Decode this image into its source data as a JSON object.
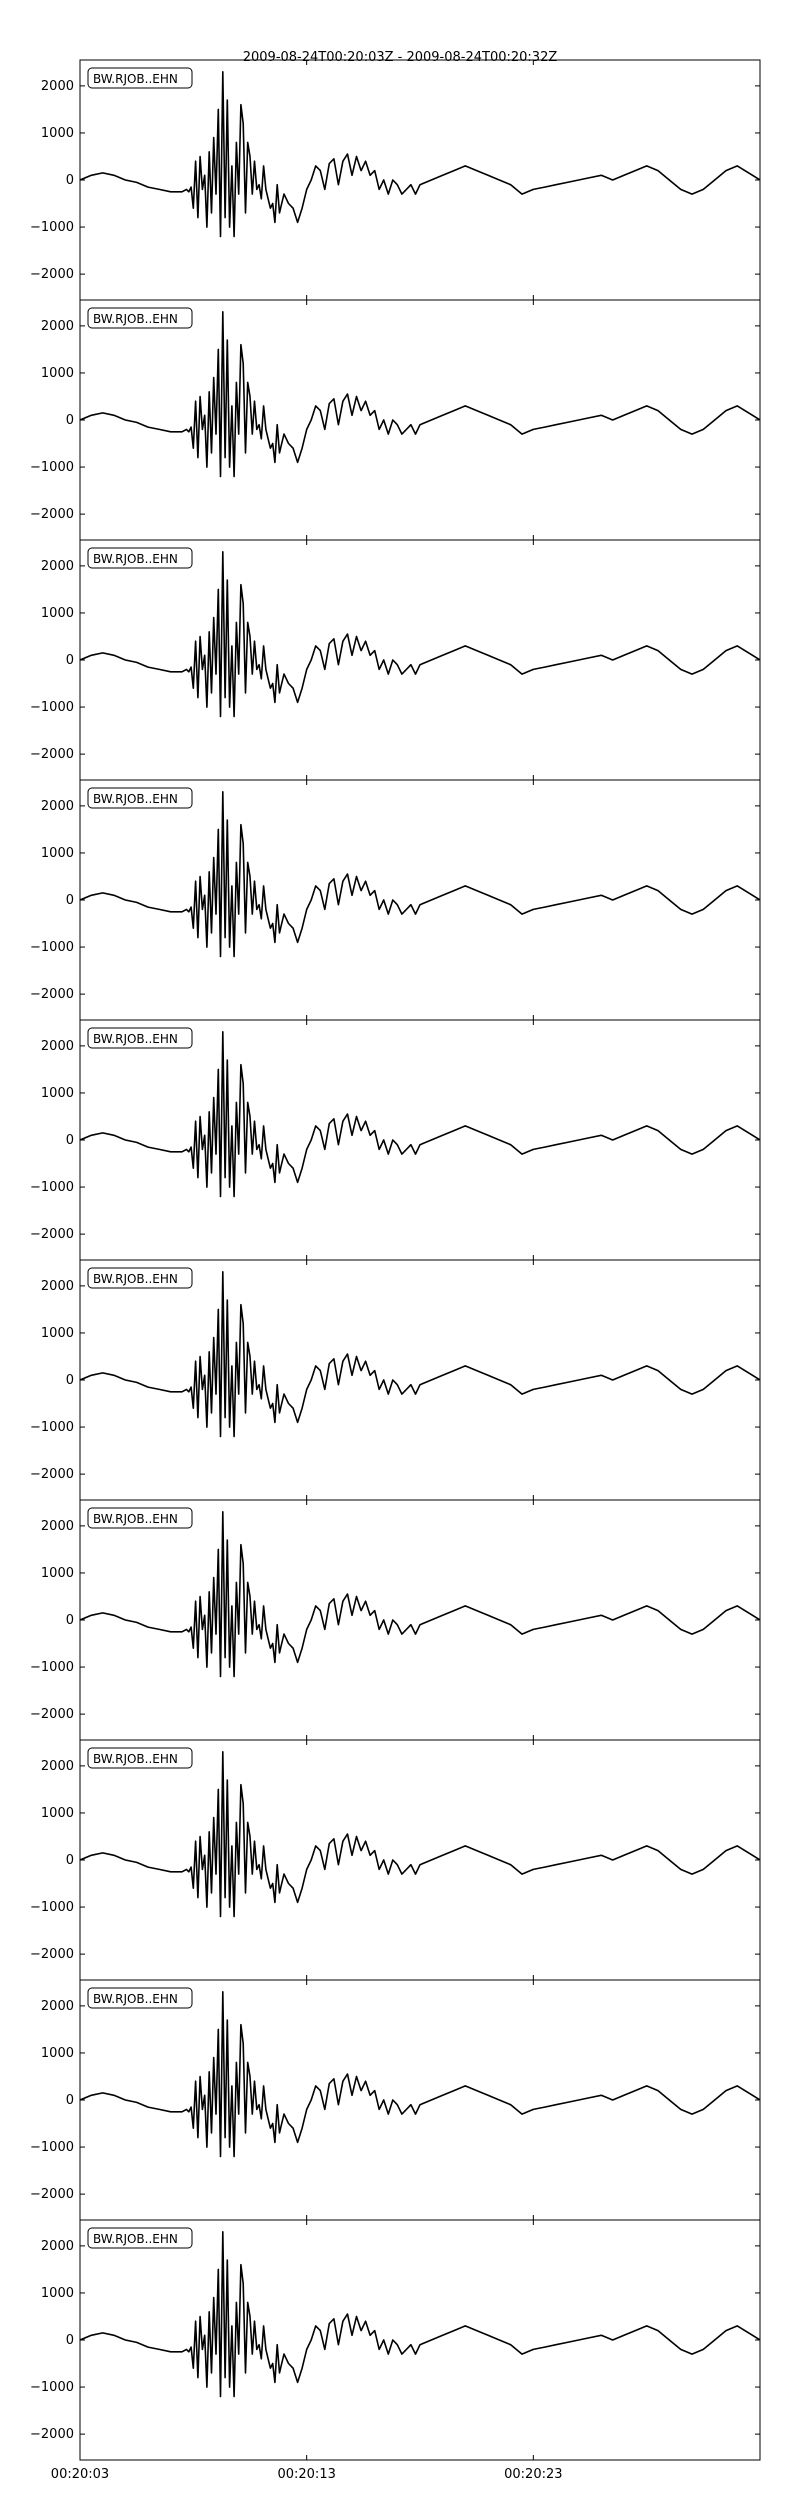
{
  "figure": {
    "title": "2009-08-24T00:20:03Z - 2009-08-24T00:20:32Z"
  },
  "chart_data": {
    "type": "line",
    "title": "2009-08-24T00:20:03Z - 2009-08-24T00:20:32Z",
    "panel_count": 10,
    "panel_labels": [
      "BW.RJOB..EHN",
      "BW.RJOB..EHN",
      "BW.RJOB..EHN",
      "BW.RJOB..EHN",
      "BW.RJOB..EHN",
      "BW.RJOB..EHN",
      "BW.RJOB..EHN",
      "BW.RJOB..EHN",
      "BW.RJOB..EHN",
      "BW.RJOB..EHN"
    ],
    "xlabel": "",
    "ylabel": "",
    "xlim": [
      0,
      30
    ],
    "ylim": [
      -2550,
      2550
    ],
    "x_tick_values": [
      0,
      10,
      20
    ],
    "x_tick_labels": [
      "00:20:03",
      "00:20:13",
      "00:20:23"
    ],
    "y_tick_values": [
      2000,
      1000,
      0,
      -1000,
      -2000
    ],
    "y_tick_labels": [
      "2000",
      "1000",
      "0",
      "−1000",
      "−2000"
    ],
    "grid": false,
    "legend_position": "top-left",
    "line_color": "#000000",
    "series": [
      {
        "name": "BW.RJOB..EHN",
        "x": [
          0,
          0.5,
          1,
          1.5,
          2,
          2.5,
          3,
          3.5,
          4,
          4.5,
          4.7,
          4.8,
          4.9,
          5.0,
          5.1,
          5.2,
          5.3,
          5.4,
          5.5,
          5.6,
          5.7,
          5.8,
          5.9,
          6.0,
          6.1,
          6.2,
          6.3,
          6.4,
          6.5,
          6.6,
          6.7,
          6.8,
          6.9,
          7.0,
          7.1,
          7.2,
          7.3,
          7.4,
          7.5,
          7.6,
          7.7,
          7.8,
          7.9,
          8.0,
          8.1,
          8.2,
          8.3,
          8.4,
          8.5,
          8.6,
          8.7,
          8.8,
          8.9,
          9.0,
          9.1,
          9.2,
          9.4,
          9.6,
          9.8,
          10.0,
          10.2,
          10.4,
          10.6,
          10.8,
          11.0,
          11.2,
          11.4,
          11.6,
          11.8,
          12.0,
          12.2,
          12.4,
          12.6,
          12.8,
          13.0,
          13.2,
          13.4,
          13.6,
          13.8,
          14.0,
          14.2,
          14.4,
          14.6,
          14.8,
          15.0,
          15.5,
          16.0,
          16.5,
          17.0,
          17.5,
          18.0,
          18.5,
          19.0,
          19.5,
          20.0,
          20.5,
          21.0,
          21.5,
          22.0,
          22.5,
          23.0,
          23.5,
          24.0,
          24.5,
          25.0,
          25.5,
          26.0,
          26.5,
          27.0,
          27.5,
          28.0,
          28.5,
          29.0,
          29.5,
          30.0
        ],
        "values": [
          0,
          100,
          150,
          100,
          0,
          -50,
          -150,
          -200,
          -250,
          -250,
          -200,
          -250,
          -150,
          -600,
          400,
          -800,
          500,
          -200,
          100,
          -1000,
          600,
          -700,
          900,
          -300,
          1500,
          -1200,
          2300,
          -800,
          1700,
          -1000,
          300,
          -1200,
          800,
          -300,
          1600,
          1200,
          -700,
          800,
          500,
          -300,
          400,
          -200,
          -100,
          -400,
          300,
          -200,
          -400,
          -600,
          -500,
          -900,
          -100,
          -700,
          -500,
          -300,
          -400,
          -500,
          -600,
          -900,
          -600,
          -200,
          0,
          300,
          200,
          -200,
          350,
          450,
          -100,
          400,
          550,
          100,
          500,
          200,
          400,
          100,
          200,
          -200,
          0,
          -300,
          0,
          -100,
          -300,
          -200,
          -100,
          -300,
          -100,
          0,
          100,
          200,
          300,
          200,
          100,
          0,
          -100,
          -300,
          -200,
          -150,
          -100,
          -50,
          0,
          50,
          100,
          0,
          100,
          200,
          300,
          200,
          0,
          -200,
          -300,
          -200,
          0,
          200,
          300,
          150,
          0
        ]
      }
    ]
  }
}
